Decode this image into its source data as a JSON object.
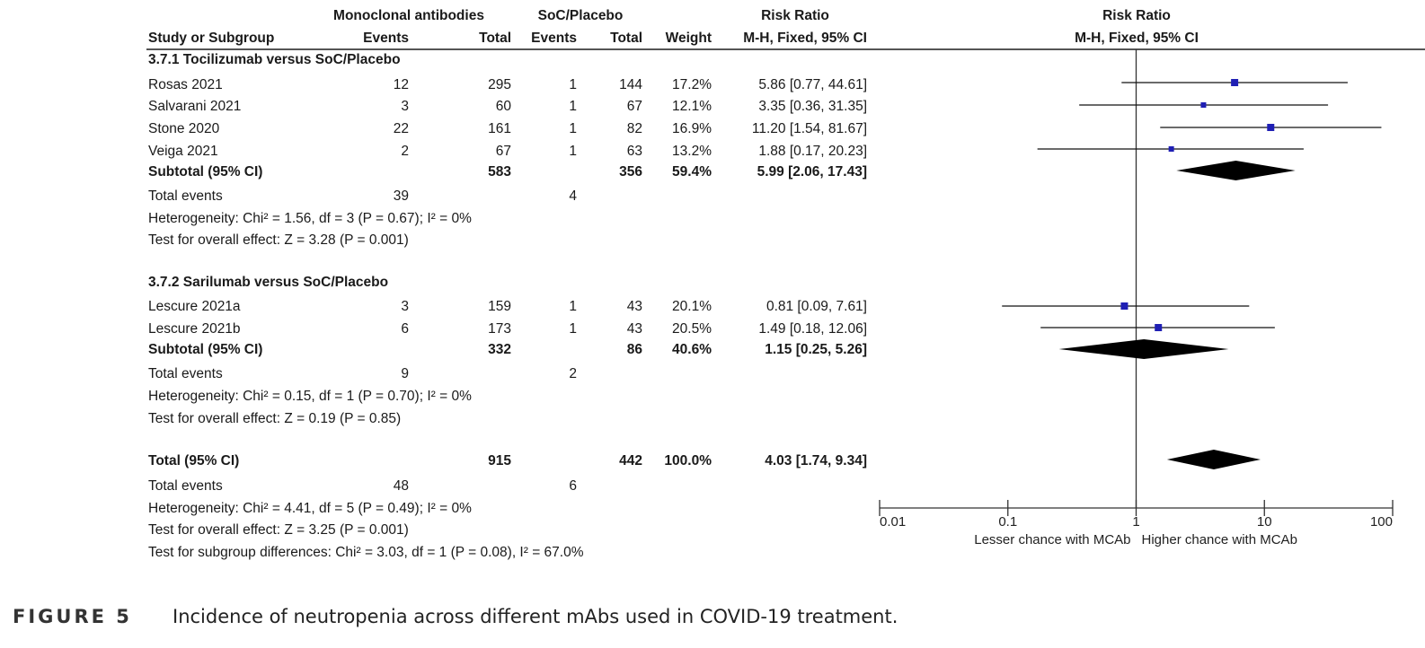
{
  "header": {
    "group1": "Monoclonal antibodies",
    "group2": "SoC/Placebo",
    "rr_title": "Risk Ratio",
    "study_col": "Study or Subgroup",
    "events1": "Events",
    "total1": "Total",
    "events2": "Events",
    "total2": "Total",
    "weight": "Weight",
    "method": "M-H, Fixed, 95% CI",
    "plot_title": "Risk Ratio",
    "plot_method": "M-H, Fixed, 95% CI"
  },
  "subgroups": [
    {
      "title": "3.7.1 Tocilizumab versus SoC/Placebo",
      "studies": [
        {
          "name": "Rosas 2021",
          "e1": "12",
          "t1": "295",
          "e2": "1",
          "t2": "144",
          "weight": "17.2%",
          "ci": "5.86 [0.77, 44.61]"
        },
        {
          "name": "Salvarani 2021",
          "e1": "3",
          "t1": "60",
          "e2": "1",
          "t2": "67",
          "weight": "12.1%",
          "ci": "3.35 [0.36, 31.35]"
        },
        {
          "name": "Stone 2020",
          "e1": "22",
          "t1": "161",
          "e2": "1",
          "t2": "82",
          "weight": "16.9%",
          "ci": "11.20 [1.54, 81.67]"
        },
        {
          "name": "Veiga 2021",
          "e1": "2",
          "t1": "67",
          "e2": "1",
          "t2": "63",
          "weight": "13.2%",
          "ci": "1.88 [0.17, 20.23]"
        }
      ],
      "subtotal": {
        "label": "Subtotal (95% CI)",
        "t1": "583",
        "t2": "356",
        "weight": "59.4%",
        "ci": "5.99 [2.06, 17.43]"
      },
      "total_events": {
        "label": "Total events",
        "e1": "39",
        "e2": "4"
      },
      "heterogeneity": "Heterogeneity: Chi² = 1.56, df = 3 (P = 0.67); I² = 0%",
      "overall": "Test for overall effect: Z = 3.28 (P = 0.001)"
    },
    {
      "title": "3.7.2 Sarilumab versus SoC/Placebo",
      "studies": [
        {
          "name": "Lescure 2021a",
          "e1": "3",
          "t1": "159",
          "e2": "1",
          "t2": "43",
          "weight": "20.1%",
          "ci": "0.81 [0.09, 7.61]"
        },
        {
          "name": "Lescure 2021b",
          "e1": "6",
          "t1": "173",
          "e2": "1",
          "t2": "43",
          "weight": "20.5%",
          "ci": "1.49 [0.18, 12.06]"
        }
      ],
      "subtotal": {
        "label": "Subtotal (95% CI)",
        "t1": "332",
        "t2": "86",
        "weight": "40.6%",
        "ci": "1.15 [0.25, 5.26]"
      },
      "total_events": {
        "label": "Total events",
        "e1": "9",
        "e2": "2"
      },
      "heterogeneity": "Heterogeneity: Chi² = 0.15, df = 1 (P = 0.70); I² = 0%",
      "overall": "Test for overall effect: Z = 0.19 (P = 0.85)"
    }
  ],
  "total": {
    "label": "Total (95% CI)",
    "t1": "915",
    "t2": "442",
    "weight": "100.0%",
    "ci": "4.03 [1.74, 9.34]",
    "events_label": "Total events",
    "e1": "48",
    "e2": "6",
    "heterogeneity": "Heterogeneity: Chi² = 4.41, df = 5 (P = 0.49); I² = 0%",
    "overall": "Test for overall effect: Z = 3.25 (P = 0.001)",
    "subgroup_diff": "Test for subgroup differences: Chi² = 3.03, df = 1 (P = 0.08), I² = 67.0%"
  },
  "axis": {
    "ticks": [
      "0.01",
      "0.1",
      "1",
      "10",
      "100"
    ],
    "left_label": "Lesser chance with MCAb",
    "right_label": "Higher chance with MCAb"
  },
  "caption": {
    "label": "FIGURE 5",
    "text": "Incidence of neutropenia across different mAbs used in COVID-19 treatment."
  },
  "colors": {
    "point": "#1f1fb4",
    "diamond": "#000000",
    "rule": "#555555"
  },
  "chart_data": {
    "type": "forest",
    "scale": "log",
    "xlim": [
      0.01,
      100
    ],
    "null_value": 1,
    "studies": [
      {
        "name": "Rosas 2021",
        "rr": 5.86,
        "lo": 0.77,
        "hi": 44.61
      },
      {
        "name": "Salvarani 2021",
        "rr": 3.35,
        "lo": 0.36,
        "hi": 31.35
      },
      {
        "name": "Stone 2020",
        "rr": 11.2,
        "lo": 1.54,
        "hi": 81.67
      },
      {
        "name": "Veiga 2021",
        "rr": 1.88,
        "lo": 0.17,
        "hi": 20.23
      },
      {
        "name": "Lescure 2021a",
        "rr": 0.81,
        "lo": 0.09,
        "hi": 7.61
      },
      {
        "name": "Lescure 2021b",
        "rr": 1.49,
        "lo": 0.18,
        "hi": 12.06
      }
    ],
    "pooled": [
      {
        "name": "Subtotal 3.7.1",
        "rr": 5.99,
        "lo": 2.06,
        "hi": 17.43
      },
      {
        "name": "Subtotal 3.7.2",
        "rr": 1.15,
        "lo": 0.25,
        "hi": 5.26
      },
      {
        "name": "Total",
        "rr": 4.03,
        "lo": 1.74,
        "hi": 9.34
      }
    ]
  }
}
